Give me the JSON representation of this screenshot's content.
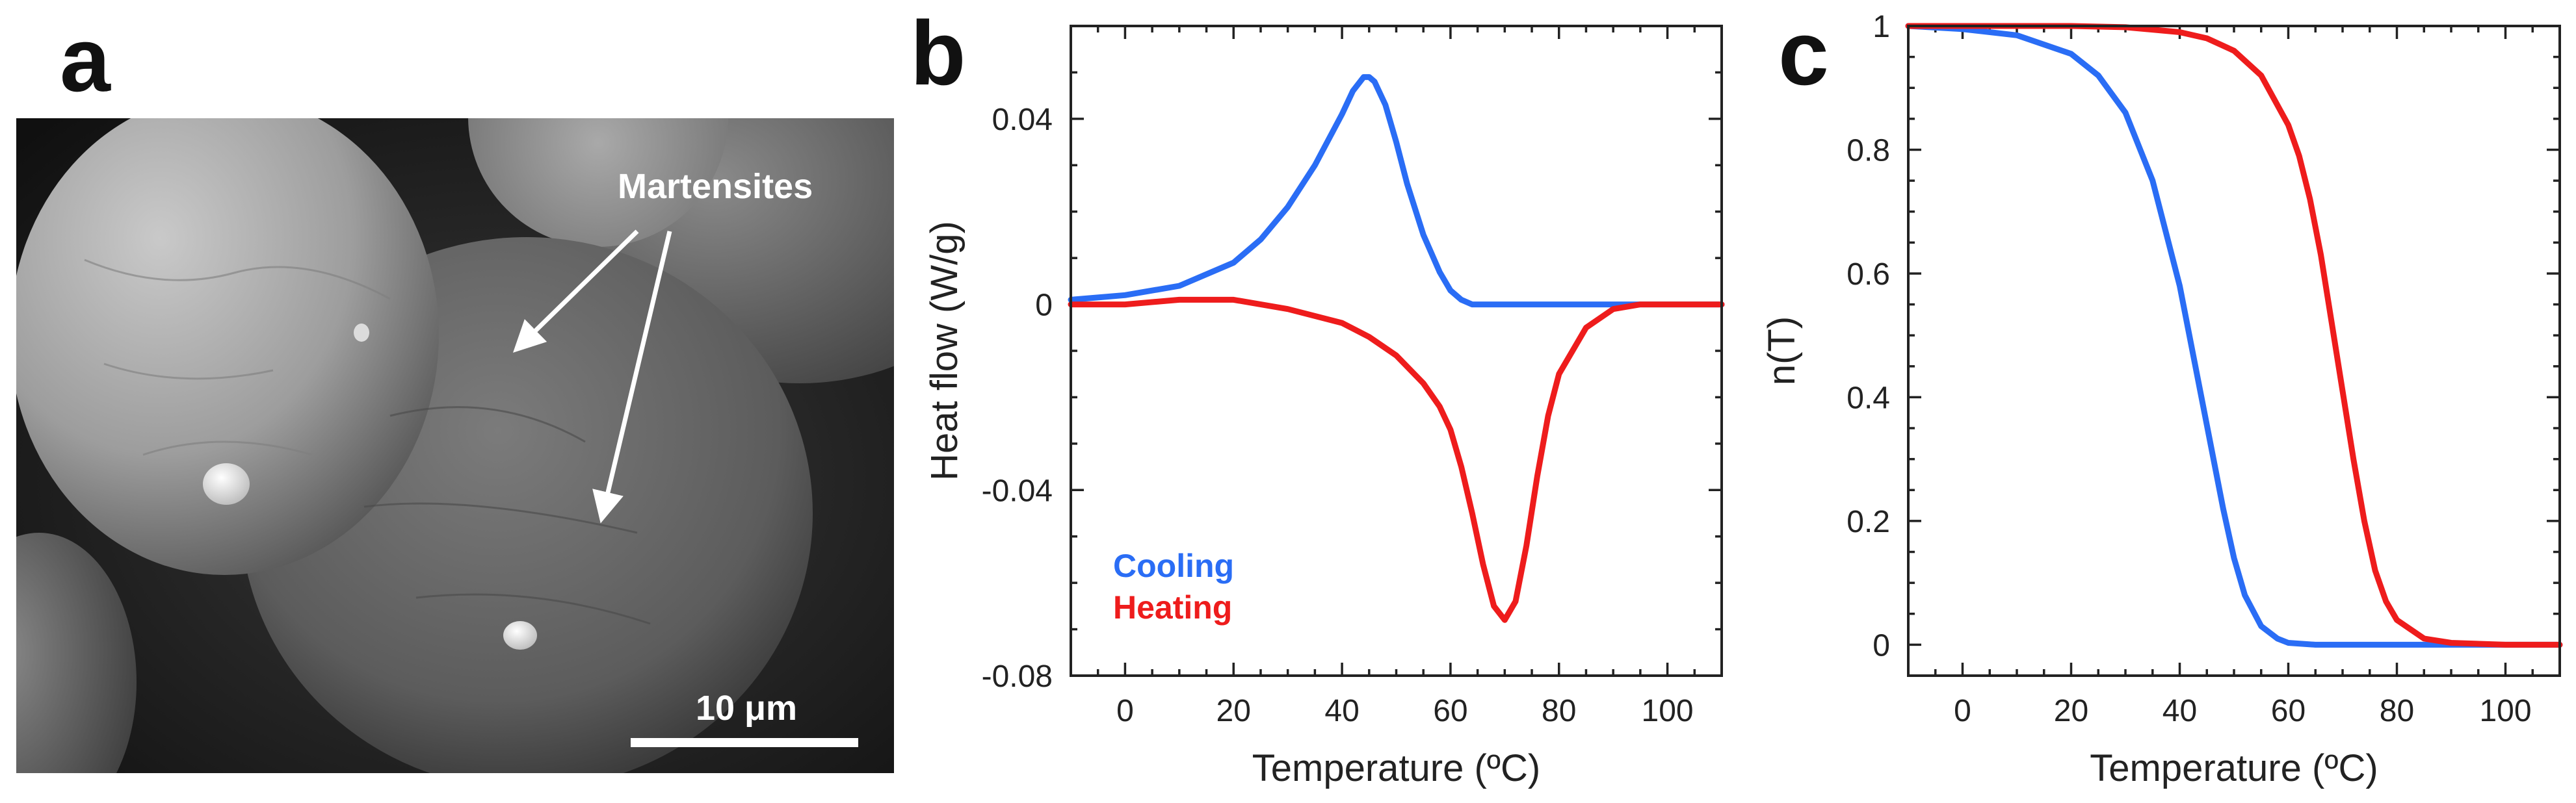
{
  "colors": {
    "cooling": "#2a6df5",
    "heating": "#ee1c1c",
    "axis": "#222222"
  },
  "panels": {
    "a": {
      "letter": "a",
      "annotation": "Martensites",
      "scale_bar_label": "10 μm",
      "scale_bar_length_um": 10
    }
  },
  "chart_data": [
    {
      "panel": "b",
      "letter": "b",
      "type": "line",
      "title": "",
      "xlabel": "Temperature (ºC)",
      "ylabel": "Heat flow (W/g)",
      "xlim": [
        -10,
        110
      ],
      "ylim": [
        -0.08,
        0.06
      ],
      "xticks": [
        0,
        20,
        40,
        60,
        80,
        100
      ],
      "xtick_labels": [
        "0",
        "20",
        "40",
        "60",
        "80",
        "100"
      ],
      "yticks": [
        -0.08,
        -0.04,
        0,
        0.04
      ],
      "ytick_labels": [
        "-0.08",
        "-0.04",
        "0",
        "0.04"
      ],
      "legend": [
        "Cooling",
        "Heating"
      ],
      "legend_position": "bottom-left",
      "series": [
        {
          "name": "Cooling",
          "color_key": "cooling",
          "x": [
            -10,
            0,
            10,
            20,
            25,
            30,
            35,
            40,
            42,
            44,
            45,
            46,
            48,
            50,
            52,
            55,
            58,
            60,
            62,
            64,
            66,
            70,
            80,
            90,
            100,
            110
          ],
          "y": [
            0.001,
            0.002,
            0.004,
            0.009,
            0.014,
            0.021,
            0.03,
            0.041,
            0.046,
            0.049,
            0.049,
            0.048,
            0.043,
            0.035,
            0.026,
            0.015,
            0.007,
            0.003,
            0.001,
            0.0,
            0.0,
            0.0,
            0.0,
            0.0,
            0.0,
            0.0
          ]
        },
        {
          "name": "Heating",
          "color_key": "heating",
          "x": [
            -10,
            0,
            10,
            20,
            30,
            40,
            45,
            50,
            55,
            58,
            60,
            62,
            64,
            66,
            68,
            70,
            72,
            74,
            76,
            78,
            80,
            85,
            90,
            95,
            100,
            110
          ],
          "y": [
            0.0,
            0.0,
            0.001,
            0.001,
            -0.001,
            -0.004,
            -0.007,
            -0.011,
            -0.017,
            -0.022,
            -0.027,
            -0.035,
            -0.045,
            -0.056,
            -0.065,
            -0.068,
            -0.064,
            -0.052,
            -0.037,
            -0.024,
            -0.015,
            -0.005,
            -0.001,
            0.0,
            0.0,
            0.0
          ]
        }
      ]
    },
    {
      "panel": "c",
      "letter": "c",
      "type": "line",
      "title": "",
      "xlabel": "Temperature (ºC)",
      "ylabel": "n(T)",
      "xlim": [
        -10,
        110
      ],
      "ylim": [
        -0.05,
        1.0
      ],
      "xticks": [
        0,
        20,
        40,
        60,
        80,
        100
      ],
      "xtick_labels": [
        "0",
        "20",
        "40",
        "60",
        "80",
        "100"
      ],
      "yticks": [
        0,
        0.2,
        0.4,
        0.6,
        0.8,
        1
      ],
      "ytick_labels": [
        "0",
        "0.2",
        "0.4",
        "0.6",
        "0.8",
        "1"
      ],
      "series": [
        {
          "name": "Cooling",
          "color_key": "cooling",
          "x": [
            -10,
            0,
            10,
            20,
            25,
            30,
            35,
            40,
            42,
            44,
            46,
            48,
            50,
            52,
            55,
            58,
            60,
            65,
            70,
            80,
            90,
            100,
            110
          ],
          "y": [
            1.0,
            0.995,
            0.985,
            0.955,
            0.92,
            0.86,
            0.75,
            0.58,
            0.49,
            0.4,
            0.31,
            0.22,
            0.14,
            0.08,
            0.03,
            0.01,
            0.003,
            0.0,
            0.0,
            0.0,
            0.0,
            0.0,
            0.0
          ]
        },
        {
          "name": "Heating",
          "color_key": "heating",
          "x": [
            -10,
            0,
            10,
            20,
            30,
            40,
            45,
            50,
            55,
            60,
            62,
            64,
            66,
            68,
            70,
            72,
            74,
            76,
            78,
            80,
            85,
            90,
            100,
            110
          ],
          "y": [
            1.0,
            1.0,
            1.0,
            1.0,
            0.998,
            0.99,
            0.98,
            0.96,
            0.92,
            0.84,
            0.79,
            0.72,
            0.63,
            0.52,
            0.41,
            0.3,
            0.2,
            0.12,
            0.07,
            0.04,
            0.01,
            0.003,
            0.0,
            0.0
          ]
        }
      ]
    }
  ]
}
